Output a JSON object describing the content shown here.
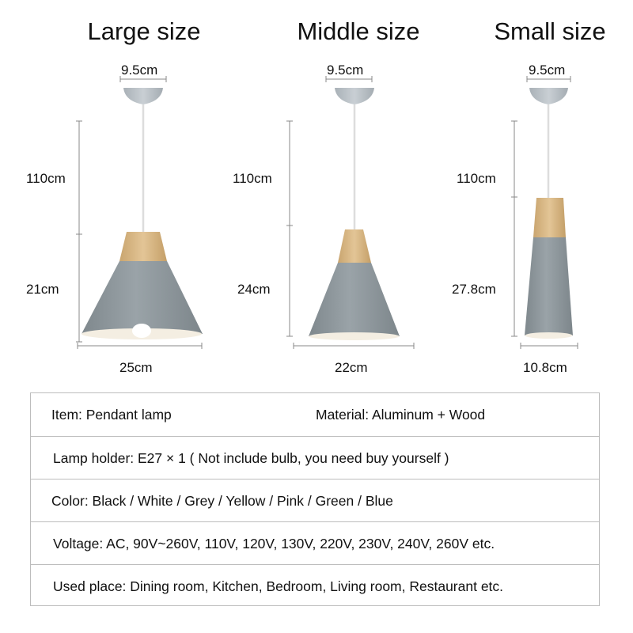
{
  "sizes": [
    {
      "title": "Large size",
      "top_width": "9.5cm",
      "cord_length": "110cm",
      "shade_height": "21cm",
      "bottom_width": "25cm"
    },
    {
      "title": "Middle size",
      "top_width": "9.5cm",
      "cord_length": "110cm",
      "shade_height": "24cm",
      "bottom_width": "22cm"
    },
    {
      "title": "Small size",
      "top_width": "9.5cm",
      "cord_length": "110cm",
      "shade_height": "27.8cm",
      "bottom_width": "10.8cm"
    }
  ],
  "specs": {
    "item": "Item: Pendant lamp",
    "material": "Material: Aluminum + Wood",
    "lamp_holder": "Lamp holder: E27 × 1 ( Not include bulb, you need buy yourself )",
    "color": "Color: Black / White / Grey / Yellow / Pink / Green / Blue",
    "voltage": "Voltage: AC, 90V~260V, 110V, 120V, 130V, 220V, 230V, 240V, 260V etc.",
    "used_place": "Used place: Dining room, Kitchen, Bedroom, Living room, Restaurant etc."
  },
  "colors": {
    "shade": "#8e979c",
    "wood": "#d9b784",
    "canopy": "#b9c0c6",
    "inner": "#f4eee2",
    "dim_line": "#888888",
    "border": "#bdbdbd"
  }
}
